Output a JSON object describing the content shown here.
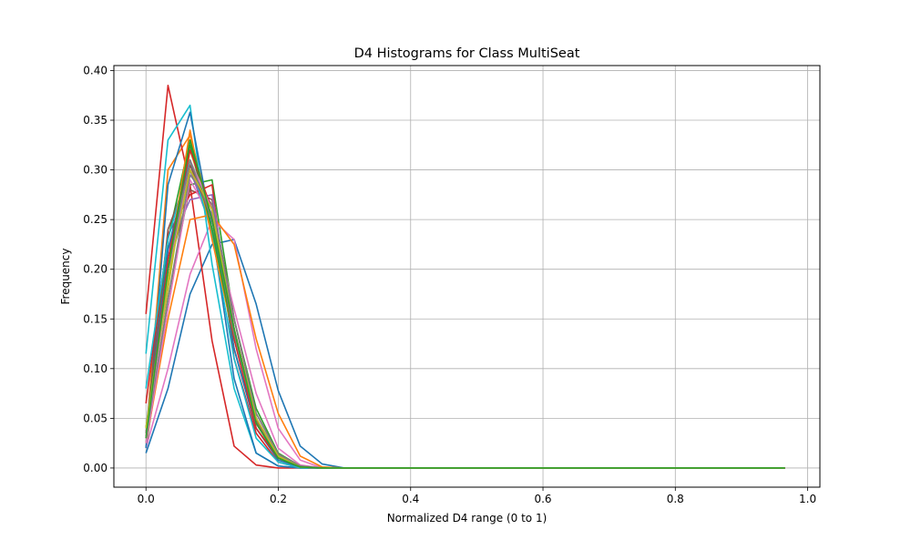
{
  "chart_data": {
    "type": "line",
    "title": "D4 Histograms for Class MultiSeat",
    "xlabel": "Normalized D4 range (0 to 1)",
    "ylabel": "Frequency",
    "xlim": [
      -0.0485,
      1.0185
    ],
    "ylim": [
      -0.0193,
      0.405
    ],
    "grid": true,
    "xticks": [
      0.0,
      0.2,
      0.4,
      0.6,
      0.8,
      1.0
    ],
    "xtick_labels": [
      "0.0",
      "0.2",
      "0.4",
      "0.6",
      "0.8",
      "1.0"
    ],
    "yticks": [
      0.0,
      0.05,
      0.1,
      0.15,
      0.2,
      0.25,
      0.3,
      0.35,
      0.4
    ],
    "ytick_labels": [
      "0.00",
      "0.05",
      "0.10",
      "0.15",
      "0.20",
      "0.25",
      "0.30",
      "0.35",
      "0.40"
    ],
    "bins": 30,
    "x_step": 0.0333,
    "series": [
      {
        "color": "#1f77b4",
        "values": [
          0.015,
          0.08,
          0.175,
          0.225,
          0.23,
          0.165,
          0.078,
          0.022,
          0.004,
          0.0
        ]
      },
      {
        "color": "#ff7f0e",
        "values": [
          0.03,
          0.3,
          0.335,
          0.25,
          0.14,
          0.05,
          0.012,
          0.002,
          0.0
        ]
      },
      {
        "color": "#2ca02c",
        "values": [
          0.02,
          0.17,
          0.285,
          0.29,
          0.15,
          0.06,
          0.015,
          0.002,
          0.0
        ]
      },
      {
        "color": "#d62728",
        "values": [
          0.155,
          0.385,
          0.285,
          0.128,
          0.022,
          0.003,
          0.0
        ]
      },
      {
        "color": "#9467bd",
        "values": [
          0.04,
          0.22,
          0.3,
          0.24,
          0.13,
          0.05,
          0.012,
          0.001,
          0.0
        ]
      },
      {
        "color": "#8c564b",
        "values": [
          0.03,
          0.2,
          0.28,
          0.27,
          0.15,
          0.055,
          0.014,
          0.002,
          0.0
        ]
      },
      {
        "color": "#e377c2",
        "values": [
          0.02,
          0.1,
          0.195,
          0.25,
          0.23,
          0.12,
          0.04,
          0.008,
          0.0
        ]
      },
      {
        "color": "#7f7f7f",
        "values": [
          0.035,
          0.19,
          0.3,
          0.25,
          0.14,
          0.05,
          0.012,
          0.001,
          0.0
        ]
      },
      {
        "color": "#bcbd22",
        "values": [
          0.04,
          0.18,
          0.32,
          0.25,
          0.13,
          0.045,
          0.01,
          0.001,
          0.0
        ]
      },
      {
        "color": "#17becf",
        "values": [
          0.115,
          0.33,
          0.365,
          0.205,
          0.08,
          0.015,
          0.002,
          0.0
        ]
      },
      {
        "color": "#1f77b4",
        "values": [
          0.02,
          0.285,
          0.358,
          0.24,
          0.09,
          0.015,
          0.002,
          0.0
        ]
      },
      {
        "color": "#ff7f0e",
        "values": [
          0.025,
          0.15,
          0.25,
          0.255,
          0.225,
          0.13,
          0.055,
          0.012,
          0.001,
          0.0
        ]
      },
      {
        "color": "#2ca02c",
        "values": [
          0.025,
          0.23,
          0.33,
          0.24,
          0.13,
          0.05,
          0.012,
          0.001,
          0.0
        ]
      },
      {
        "color": "#d62728",
        "values": [
          0.065,
          0.235,
          0.275,
          0.285,
          0.11,
          0.035,
          0.006,
          0.0
        ]
      },
      {
        "color": "#9467bd",
        "values": [
          0.03,
          0.22,
          0.27,
          0.275,
          0.14,
          0.05,
          0.012,
          0.001,
          0.0
        ]
      },
      {
        "color": "#8c564b",
        "values": [
          0.035,
          0.24,
          0.3,
          0.255,
          0.12,
          0.04,
          0.01,
          0.001,
          0.0
        ]
      },
      {
        "color": "#e377c2",
        "values": [
          0.025,
          0.16,
          0.29,
          0.25,
          0.16,
          0.075,
          0.02,
          0.003,
          0.0
        ]
      },
      {
        "color": "#7f7f7f",
        "values": [
          0.03,
          0.17,
          0.295,
          0.265,
          0.15,
          0.055,
          0.014,
          0.002,
          0.0
        ]
      },
      {
        "color": "#bcbd22",
        "values": [
          0.035,
          0.2,
          0.31,
          0.24,
          0.14,
          0.05,
          0.012,
          0.001,
          0.0
        ]
      },
      {
        "color": "#17becf",
        "values": [
          0.08,
          0.23,
          0.31,
          0.235,
          0.11,
          0.03,
          0.006,
          0.0
        ]
      },
      {
        "color": "#1f77b4",
        "values": [
          0.03,
          0.22,
          0.31,
          0.25,
          0.12,
          0.04,
          0.008,
          0.001,
          0.0
        ]
      },
      {
        "color": "#ff7f0e",
        "values": [
          0.03,
          0.2,
          0.34,
          0.23,
          0.13,
          0.045,
          0.01,
          0.001,
          0.0
        ]
      },
      {
        "color": "#2ca02c",
        "values": [
          0.04,
          0.2,
          0.325,
          0.24,
          0.13,
          0.045,
          0.01,
          0.001,
          0.0
        ]
      },
      {
        "color": "#d62728",
        "values": [
          0.03,
          0.21,
          0.32,
          0.26,
          0.13,
          0.04,
          0.01,
          0.001,
          0.0
        ]
      },
      {
        "color": "#9467bd",
        "values": [
          0.03,
          0.2,
          0.3,
          0.255,
          0.14,
          0.05,
          0.012,
          0.001,
          0.0
        ]
      },
      {
        "color": "#8c564b",
        "values": [
          0.035,
          0.2,
          0.305,
          0.25,
          0.14,
          0.048,
          0.012,
          0.001,
          0.0
        ]
      },
      {
        "color": "#e377c2",
        "values": [
          0.03,
          0.19,
          0.31,
          0.26,
          0.14,
          0.045,
          0.011,
          0.001,
          0.0
        ]
      },
      {
        "color": "#7f7f7f",
        "values": [
          0.035,
          0.2,
          0.31,
          0.25,
          0.135,
          0.045,
          0.011,
          0.001,
          0.0
        ]
      },
      {
        "color": "#bcbd22",
        "values": [
          0.04,
          0.19,
          0.3,
          0.26,
          0.14,
          0.05,
          0.012,
          0.001,
          0.0
        ]
      },
      {
        "color": "#2ca02c",
        "values": [
          0.03,
          0.2,
          0.33,
          0.25,
          0.14,
          0.045,
          0.01,
          0.001,
          0.0
        ]
      }
    ]
  }
}
